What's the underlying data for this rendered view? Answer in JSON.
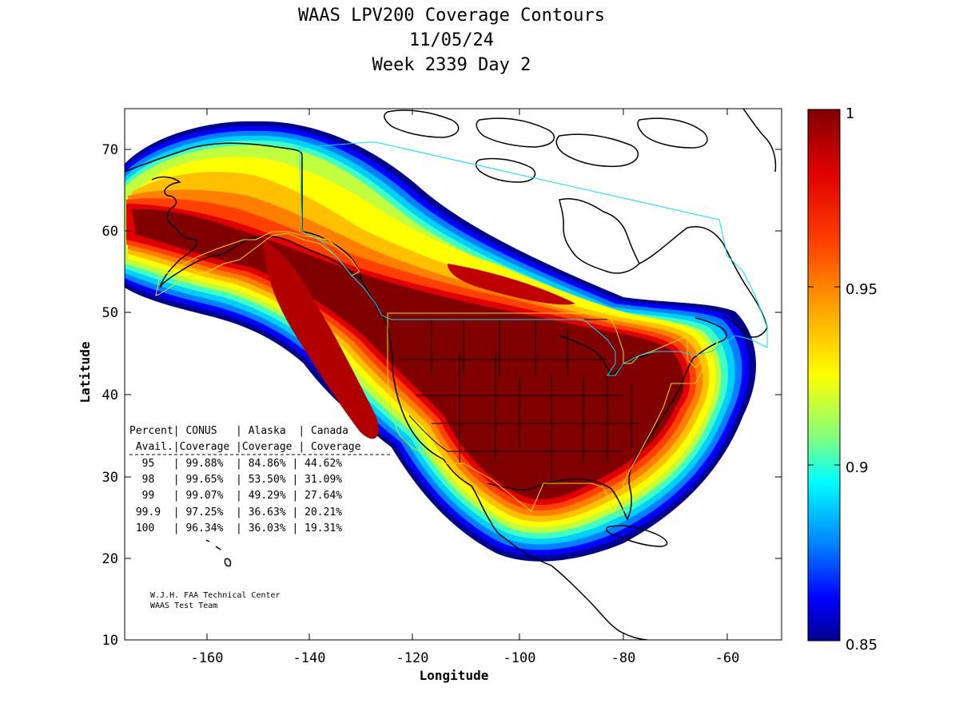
{
  "title": {
    "line1": "WAAS LPV200 Coverage Contours",
    "line2": "11/05/24",
    "line3": "Week 2339 Day 2"
  },
  "axes": {
    "xlabel": "Longitude",
    "ylabel": "Latitude",
    "xticks": [
      "-160",
      "-140",
      "-120",
      "-100",
      "-80",
      "-60"
    ],
    "yticks": [
      "10",
      "20",
      "30",
      "40",
      "50",
      "60",
      "70"
    ]
  },
  "colorbar": {
    "labels": [
      "1",
      "0.95",
      "0.9",
      "0.85"
    ]
  },
  "table": {
    "header1": "Percent| CONUS   | Alaska  | Canada",
    "header2": " Avail.|Coverage |Coverage | Coverage",
    "rows": [
      "  95   | 99.88%  | 84.86% | 44.62%",
      "  98   | 99.65%  | 53.50% | 31.09%",
      "  99   | 99.07%  | 49.29% | 27.64%",
      " 99.9  | 97.25%  | 36.63% | 20.21%",
      " 100   | 96.34%  | 36.03% | 19.31%"
    ]
  },
  "credits": {
    "line1": "W.J.H. FAA Technical Center",
    "line2": "WAAS Test Team"
  },
  "chart_data": {
    "type": "heatmap",
    "title": "WAAS LPV200 Coverage Contours",
    "subtitle": [
      "11/05/24",
      "Week 2339 Day 2"
    ],
    "xlabel": "Longitude",
    "ylabel": "Latitude",
    "xlim": [
      -175,
      -48
    ],
    "ylim": [
      10,
      75
    ],
    "colorbar_range": [
      0.85,
      1.0
    ],
    "colorbar_ticks": [
      0.85,
      0.9,
      0.95,
      1.0
    ],
    "colormap": "jet",
    "coverage_table": {
      "columns": [
        "Percent Avail.",
        "CONUS Coverage",
        "Alaska Coverage",
        "Canada Coverage"
      ],
      "rows": [
        [
          95,
          99.88,
          84.86,
          44.62
        ],
        [
          98,
          99.65,
          53.5,
          31.09
        ],
        [
          99,
          99.07,
          49.29,
          27.64
        ],
        [
          99.9,
          97.25,
          36.63,
          20.21
        ],
        [
          100,
          96.34,
          36.03,
          19.31
        ]
      ]
    },
    "colors": {
      "max": "#800000",
      "high": "#ff0000",
      "mid_high": "#ffaa00",
      "mid": "#ffff00",
      "mid_low": "#00ffff",
      "low": "#0000ff",
      "min": "#00008f"
    }
  }
}
